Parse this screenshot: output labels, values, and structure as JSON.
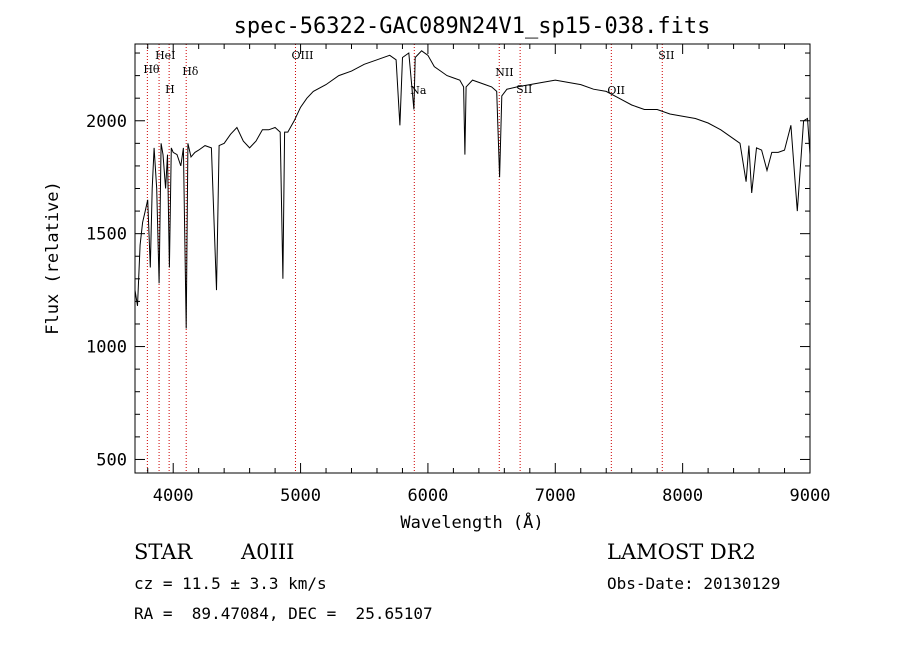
{
  "chart_data": {
    "type": "line",
    "title": "spec-56322-GAC089N24V1_sp15-038.fits",
    "xlabel": "Wavelength (Å)",
    "ylabel": "Flux (relative)",
    "xlim": [
      3700,
      9000
    ],
    "ylim": [
      440,
      2340
    ],
    "x_ticks": [
      4000,
      5000,
      6000,
      7000,
      8000,
      9000
    ],
    "y_ticks": [
      500,
      1000,
      1500,
      2000
    ],
    "grid": false,
    "line_color": "#000000",
    "marker_color": "#cc0000",
    "series": [
      {
        "x": [
          3700,
          3720,
          3740,
          3760,
          3780,
          3800,
          3820,
          3835,
          3850,
          3870,
          3889,
          3905,
          3920,
          3940,
          3955,
          3970,
          3985,
          4000,
          4030,
          4060,
          4080,
          4102,
          4115,
          4140,
          4170,
          4200,
          4250,
          4300,
          4340,
          4360,
          4400,
          4450,
          4500,
          4550,
          4600,
          4650,
          4700,
          4750,
          4800,
          4840,
          4861,
          4875,
          4900,
          4950,
          5000,
          5050,
          5100,
          5200,
          5300,
          5400,
          5500,
          5600,
          5700,
          5750,
          5780,
          5800,
          5850,
          5890,
          5900,
          5950,
          6000,
          6050,
          6100,
          6150,
          6200,
          6250,
          6280,
          6290,
          6300,
          6350,
          6400,
          6450,
          6500,
          6540,
          6563,
          6580,
          6620,
          6700,
          6800,
          6900,
          7000,
          7100,
          7200,
          7300,
          7400,
          7500,
          7600,
          7700,
          7800,
          7900,
          8000,
          8100,
          8200,
          8300,
          8400,
          8450,
          8498,
          8520,
          8542,
          8580,
          8620,
          8662,
          8700,
          8750,
          8800,
          8850,
          8900,
          8950,
          8980,
          9000
        ],
        "y": [
          1250,
          1180,
          1450,
          1550,
          1600,
          1650,
          1350,
          1700,
          1880,
          1700,
          1280,
          1900,
          1850,
          1700,
          1850,
          1350,
          1880,
          1860,
          1850,
          1800,
          1880,
          1080,
          1900,
          1840,
          1860,
          1870,
          1890,
          1880,
          1250,
          1890,
          1900,
          1940,
          1970,
          1910,
          1880,
          1910,
          1960,
          1960,
          1970,
          1950,
          1300,
          1950,
          1950,
          2000,
          2060,
          2100,
          2130,
          2160,
          2200,
          2220,
          2250,
          2270,
          2290,
          2270,
          1980,
          2280,
          2300,
          2050,
          2280,
          2310,
          2290,
          2240,
          2220,
          2200,
          2190,
          2180,
          2150,
          1850,
          2150,
          2180,
          2170,
          2160,
          2150,
          2130,
          1750,
          2110,
          2140,
          2150,
          2160,
          2170,
          2180,
          2170,
          2160,
          2140,
          2130,
          2100,
          2070,
          2050,
          2050,
          2030,
          2020,
          2010,
          1990,
          1960,
          1920,
          1900,
          1730,
          1890,
          1680,
          1880,
          1870,
          1780,
          1860,
          1860,
          1870,
          1980,
          1600,
          2000,
          2010,
          1850
        ]
      }
    ],
    "line_markers": [
      {
        "label": "Hθ",
        "x": 3797
      },
      {
        "label": "HeI",
        "x": 3889
      },
      {
        "label": "H",
        "x": 3968
      },
      {
        "label": "Hδ",
        "x": 4102
      },
      {
        "label": "OIII",
        "x": 4960
      },
      {
        "label": "Na",
        "x": 5893
      },
      {
        "label": "NII",
        "x": 6560
      },
      {
        "label": "SII",
        "x": 6724
      },
      {
        "label": "OII",
        "x": 7440
      },
      {
        "label": "SII",
        "x": 7840
      }
    ]
  },
  "info": {
    "object_class": "STAR",
    "subclass": "A0III",
    "survey": "LAMOST DR2",
    "cz": "cz = 11.5 ± 3.3 km/s",
    "obs_date": "Obs-Date: 20130129",
    "coords": "RA =  89.47084, DEC =  25.65107"
  }
}
